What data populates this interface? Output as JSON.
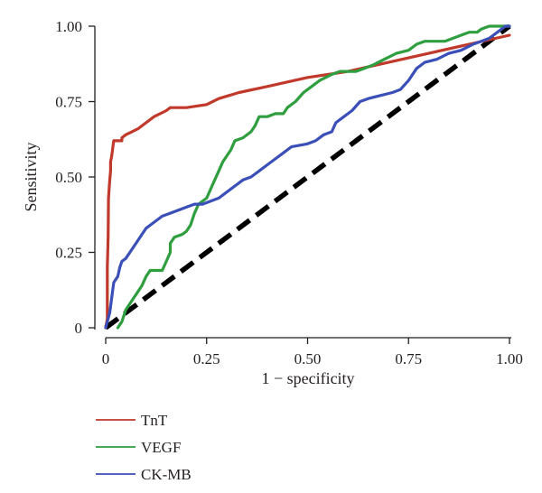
{
  "chart_data": {
    "type": "line",
    "xlabel": "1 − specificity",
    "ylabel": "Sensitivity",
    "xlim": [
      0,
      1
    ],
    "ylim": [
      0,
      1
    ],
    "x_ticks": [
      "0",
      "0.25",
      "0.50",
      "0.75",
      "1.00"
    ],
    "y_ticks": [
      "0",
      "0.25",
      "0.50",
      "0.75",
      "1.00"
    ],
    "grid": false,
    "legend_position": "bottom-left",
    "reference_line": {
      "style": "dashed",
      "color": "#000000",
      "from": [
        0,
        0
      ],
      "to": [
        1,
        1
      ]
    },
    "series": [
      {
        "name": "TnT",
        "color": "#c0392b",
        "points": [
          [
            0,
            0
          ],
          [
            0.004,
            0.03
          ],
          [
            0.004,
            0.2
          ],
          [
            0.006,
            0.3
          ],
          [
            0.007,
            0.43
          ],
          [
            0.01,
            0.49
          ],
          [
            0.012,
            0.52
          ],
          [
            0.012,
            0.55
          ],
          [
            0.015,
            0.57
          ],
          [
            0.018,
            0.6
          ],
          [
            0.02,
            0.62
          ],
          [
            0.04,
            0.62
          ],
          [
            0.04,
            0.63
          ],
          [
            0.05,
            0.64
          ],
          [
            0.065,
            0.65
          ],
          [
            0.08,
            0.66
          ],
          [
            0.1,
            0.68
          ],
          [
            0.12,
            0.7
          ],
          [
            0.15,
            0.72
          ],
          [
            0.16,
            0.73
          ],
          [
            0.2,
            0.73
          ],
          [
            0.25,
            0.74
          ],
          [
            0.28,
            0.76
          ],
          [
            0.33,
            0.78
          ],
          [
            0.4,
            0.8
          ],
          [
            0.5,
            0.83
          ],
          [
            0.6,
            0.85
          ],
          [
            0.7,
            0.88
          ],
          [
            0.8,
            0.91
          ],
          [
            0.9,
            0.94
          ],
          [
            1,
            0.97
          ]
        ]
      },
      {
        "name": "VEGF",
        "color": "#2e9e3e",
        "points": [
          [
            0.03,
            0
          ],
          [
            0.04,
            0.02
          ],
          [
            0.05,
            0.06
          ],
          [
            0.06,
            0.08
          ],
          [
            0.08,
            0.12
          ],
          [
            0.09,
            0.14
          ],
          [
            0.1,
            0.17
          ],
          [
            0.11,
            0.19
          ],
          [
            0.14,
            0.19
          ],
          [
            0.15,
            0.22
          ],
          [
            0.16,
            0.25
          ],
          [
            0.16,
            0.28
          ],
          [
            0.17,
            0.3
          ],
          [
            0.19,
            0.31
          ],
          [
            0.2,
            0.32
          ],
          [
            0.21,
            0.34
          ],
          [
            0.22,
            0.38
          ],
          [
            0.23,
            0.41
          ],
          [
            0.25,
            0.43
          ],
          [
            0.26,
            0.46
          ],
          [
            0.27,
            0.49
          ],
          [
            0.28,
            0.52
          ],
          [
            0.29,
            0.55
          ],
          [
            0.3,
            0.57
          ],
          [
            0.31,
            0.59
          ],
          [
            0.32,
            0.62
          ],
          [
            0.34,
            0.63
          ],
          [
            0.36,
            0.65
          ],
          [
            0.37,
            0.67
          ],
          [
            0.38,
            0.7
          ],
          [
            0.4,
            0.7
          ],
          [
            0.42,
            0.71
          ],
          [
            0.44,
            0.71
          ],
          [
            0.45,
            0.73
          ],
          [
            0.47,
            0.75
          ],
          [
            0.49,
            0.78
          ],
          [
            0.51,
            0.8
          ],
          [
            0.53,
            0.82
          ],
          [
            0.56,
            0.84
          ],
          [
            0.58,
            0.85
          ],
          [
            0.62,
            0.85
          ],
          [
            0.64,
            0.86
          ],
          [
            0.66,
            0.87
          ],
          [
            0.69,
            0.89
          ],
          [
            0.72,
            0.91
          ],
          [
            0.75,
            0.92
          ],
          [
            0.77,
            0.94
          ],
          [
            0.79,
            0.95
          ],
          [
            0.84,
            0.95
          ],
          [
            0.86,
            0.96
          ],
          [
            0.88,
            0.97
          ],
          [
            0.9,
            0.98
          ],
          [
            0.92,
            0.98
          ],
          [
            0.93,
            0.99
          ],
          [
            0.95,
            1
          ],
          [
            1,
            1
          ]
        ]
      },
      {
        "name": "CK-MB",
        "color": "#3b4fb8",
        "points": [
          [
            0,
            0
          ],
          [
            0.01,
            0.05
          ],
          [
            0.015,
            0.1
          ],
          [
            0.02,
            0.15
          ],
          [
            0.03,
            0.17
          ],
          [
            0.035,
            0.2
          ],
          [
            0.04,
            0.22
          ],
          [
            0.05,
            0.23
          ],
          [
            0.06,
            0.25
          ],
          [
            0.07,
            0.27
          ],
          [
            0.08,
            0.29
          ],
          [
            0.09,
            0.31
          ],
          [
            0.1,
            0.33
          ],
          [
            0.12,
            0.35
          ],
          [
            0.14,
            0.37
          ],
          [
            0.16,
            0.38
          ],
          [
            0.18,
            0.39
          ],
          [
            0.2,
            0.4
          ],
          [
            0.22,
            0.41
          ],
          [
            0.24,
            0.41
          ],
          [
            0.26,
            0.42
          ],
          [
            0.28,
            0.43
          ],
          [
            0.3,
            0.45
          ],
          [
            0.32,
            0.47
          ],
          [
            0.34,
            0.49
          ],
          [
            0.36,
            0.5
          ],
          [
            0.38,
            0.52
          ],
          [
            0.4,
            0.54
          ],
          [
            0.42,
            0.56
          ],
          [
            0.44,
            0.58
          ],
          [
            0.46,
            0.6
          ],
          [
            0.5,
            0.61
          ],
          [
            0.52,
            0.62
          ],
          [
            0.54,
            0.64
          ],
          [
            0.56,
            0.65
          ],
          [
            0.57,
            0.68
          ],
          [
            0.59,
            0.7
          ],
          [
            0.61,
            0.72
          ],
          [
            0.63,
            0.75
          ],
          [
            0.65,
            0.76
          ],
          [
            0.68,
            0.77
          ],
          [
            0.71,
            0.78
          ],
          [
            0.73,
            0.79
          ],
          [
            0.75,
            0.82
          ],
          [
            0.77,
            0.86
          ],
          [
            0.79,
            0.88
          ],
          [
            0.82,
            0.89
          ],
          [
            0.85,
            0.91
          ],
          [
            0.88,
            0.92
          ],
          [
            0.91,
            0.94
          ],
          [
            0.93,
            0.95
          ],
          [
            0.95,
            0.96
          ],
          [
            0.97,
            0.98
          ],
          [
            0.99,
            1
          ],
          [
            1,
            1
          ]
        ]
      }
    ]
  }
}
